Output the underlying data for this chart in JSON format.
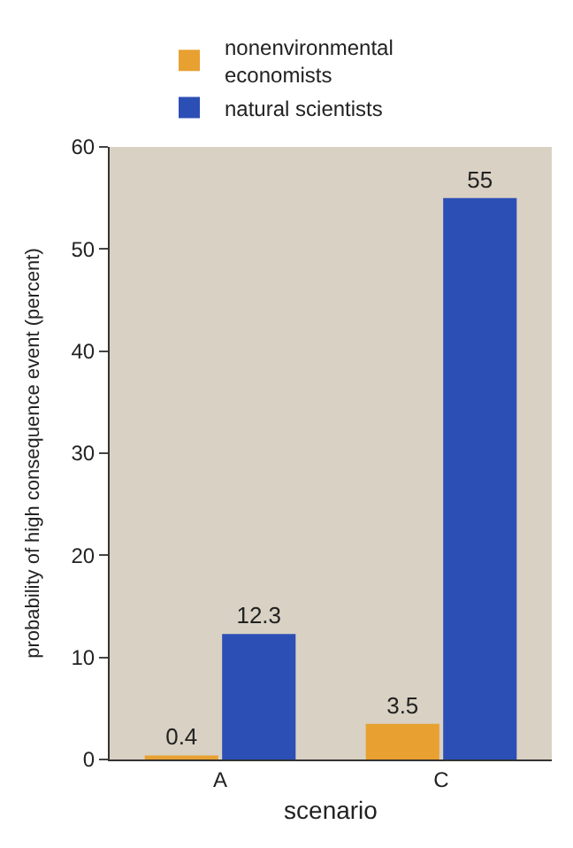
{
  "chart_data": {
    "type": "bar",
    "xlabel": "scenario",
    "ylabel": "probability of high consequence event (percent)",
    "categories": [
      "A",
      "C"
    ],
    "series": [
      {
        "name": "nonenvironmental economists",
        "color": "#e8a030",
        "values": [
          0.4,
          3.5
        ]
      },
      {
        "name": "natural scientists",
        "color": "#2b4fb5",
        "values": [
          12.3,
          55
        ]
      }
    ],
    "ylim": [
      0,
      60
    ],
    "yticks": [
      0,
      10,
      20,
      30,
      40,
      50,
      60
    ],
    "grid": false,
    "legend": "top",
    "data_labels": true
  }
}
